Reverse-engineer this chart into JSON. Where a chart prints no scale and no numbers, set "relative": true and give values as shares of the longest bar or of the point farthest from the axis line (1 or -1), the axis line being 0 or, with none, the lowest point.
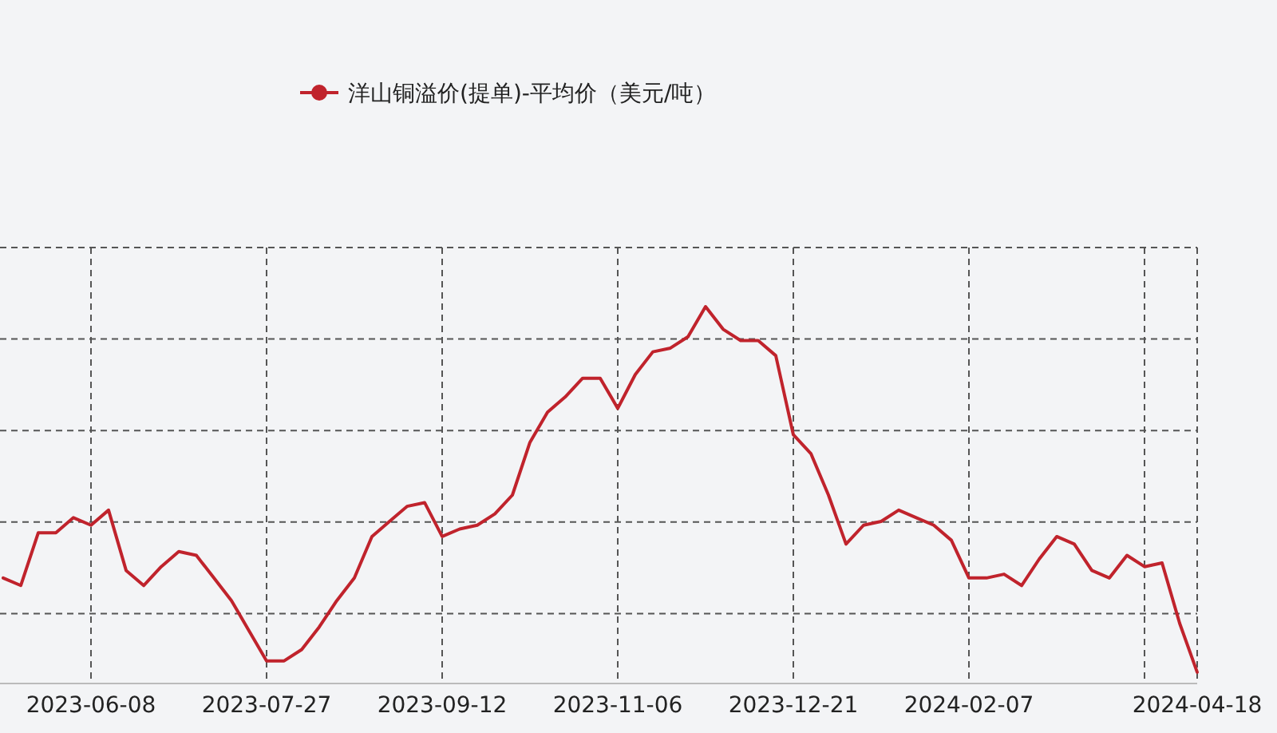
{
  "chart_data": {
    "type": "line",
    "relative": true,
    "grid": true,
    "legend": "top",
    "categories": [
      null,
      null,
      null,
      null,
      null,
      "2023-06-08",
      null,
      null,
      null,
      null,
      null,
      null,
      null,
      null,
      null,
      "2023-07-27",
      null,
      null,
      null,
      null,
      null,
      null,
      null,
      null,
      null,
      "2023-09-12",
      null,
      null,
      null,
      null,
      null,
      null,
      null,
      null,
      null,
      "2023-11-06",
      null,
      null,
      null,
      null,
      null,
      null,
      null,
      null,
      null,
      "2023-12-21",
      null,
      null,
      null,
      null,
      null,
      null,
      null,
      null,
      null,
      "2024-02-07",
      null,
      null,
      null,
      null,
      null,
      null,
      null,
      null,
      null,
      null,
      null,
      null,
      "2024-04-18"
    ],
    "series": [
      {
        "name": "洋山铜溢价(提单)-平均价（美元/吨）",
        "color": "#c0232c",
        "values": [
          0.28,
          0.26,
          0.4,
          0.4,
          0.44,
          0.42,
          0.46,
          0.3,
          0.26,
          0.31,
          0.35,
          0.34,
          0.28,
          0.22,
          0.14,
          0.06,
          0.06,
          0.09,
          0.15,
          0.22,
          0.28,
          0.39,
          0.43,
          0.47,
          0.48,
          0.39,
          0.41,
          0.42,
          0.45,
          0.5,
          0.64,
          0.72,
          0.76,
          0.81,
          0.81,
          0.73,
          0.82,
          0.88,
          0.89,
          0.92,
          1,
          0.94,
          0.91,
          0.91,
          0.87,
          0.66,
          0.61,
          0.5,
          0.37,
          0.42,
          0.43,
          0.46,
          0.44,
          0.42,
          0.38,
          0.28,
          0.28,
          0.29,
          0.26,
          0.33,
          0.39,
          0.37,
          0.3,
          0.28,
          0.34,
          0.31,
          0.32,
          0.16,
          0.03
        ]
      }
    ]
  }
}
